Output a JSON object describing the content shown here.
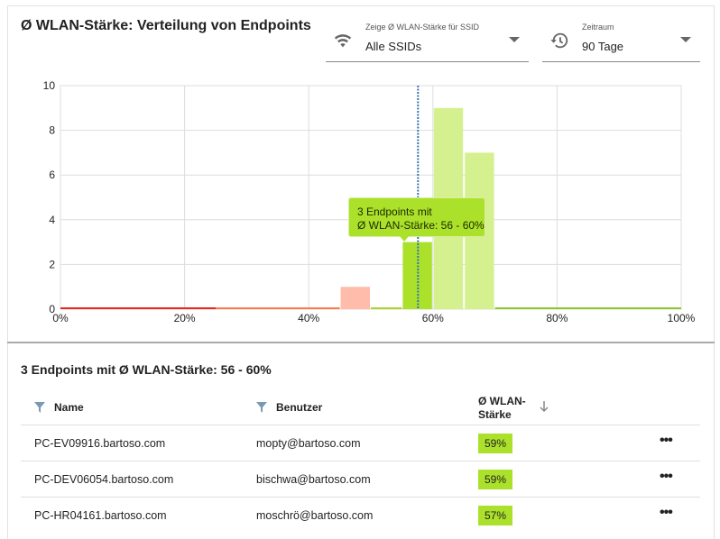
{
  "title": "Ø WLAN-Stärke: Verteilung von Endpoints",
  "ssid_select": {
    "label": "Zeige Ø WLAN-Stärke für SSID",
    "value": "Alle SSIDs",
    "icon": "wifi-icon"
  },
  "period_select": {
    "label": "Zeitraum",
    "value": "90 Tage",
    "icon": "history-icon"
  },
  "tooltip": {
    "line1": "3 Endpoints mit",
    "line2": "Ø WLAN-Stärke: 56 - 60%"
  },
  "chart_data": {
    "type": "bar",
    "title": "Ø WLAN-Stärke: Verteilung von Endpoints",
    "xlabel": "",
    "ylabel": "",
    "xlim": [
      0,
      100
    ],
    "ylim": [
      0,
      10
    ],
    "x_ticks": [
      "0%",
      "20%",
      "40%",
      "60%",
      "80%",
      "100%"
    ],
    "y_ticks": [
      "0",
      "2",
      "4",
      "6",
      "8",
      "10"
    ],
    "bins": [
      {
        "from": 0,
        "to": 25,
        "value": 0,
        "color": "#e8261c"
      },
      {
        "from": 25,
        "to": 45,
        "value": 0,
        "color": "#ff7a4a"
      },
      {
        "from": 45,
        "to": 50,
        "value": 1,
        "color": "#ffbcaa"
      },
      {
        "from": 50,
        "to": 55,
        "value": 0,
        "color": "#a8d62a"
      },
      {
        "from": 55,
        "to": 60,
        "value": 3,
        "color": "#abe12a",
        "selected": true
      },
      {
        "from": 60,
        "to": 65,
        "value": 9,
        "color": "#d5f08f"
      },
      {
        "from": 65,
        "to": 70,
        "value": 7,
        "color": "#d5f08f"
      },
      {
        "from": 70,
        "to": 100,
        "value": 0,
        "color": "#8bc82a"
      }
    ],
    "average_marker": 57.6,
    "grid": true
  },
  "list": {
    "subtitle": "3 Endpoints mit Ø WLAN-Stärke: 56 - 60%",
    "headers": {
      "name": "Name",
      "user": "Benutzer",
      "strength_1": "Ø WLAN-",
      "strength_2": "Stärke"
    },
    "rows": [
      {
        "name": "PC-EV09916.bartoso.com",
        "user": "mopty@bartoso.com",
        "strength": "59%"
      },
      {
        "name": "PC-DEV06054.bartoso.com",
        "user": "bischwa@bartoso.com",
        "strength": "59%"
      },
      {
        "name": "PC-HR04161.bartoso.com",
        "user": "moschrö@bartoso.com",
        "strength": "57%"
      }
    ],
    "more": "•••"
  }
}
